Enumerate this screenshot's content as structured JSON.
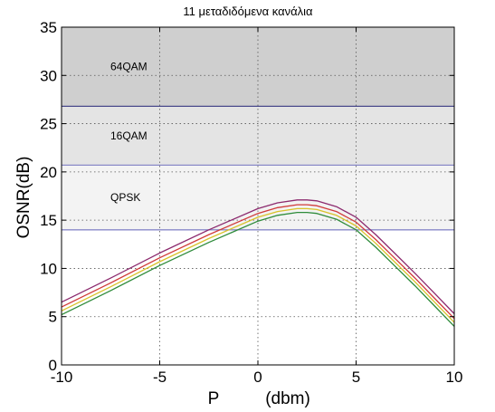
{
  "chart_data": {
    "type": "line",
    "title": "11 μεταδιδόμενα κανάλια",
    "xlabel_parts": [
      "P",
      "(dbm)"
    ],
    "ylabel": "OSNR(dB)",
    "xlim": [
      -10,
      10
    ],
    "ylim": [
      0,
      35
    ],
    "xticks": [
      -10,
      -5,
      0,
      5,
      10
    ],
    "yticks": [
      0,
      5,
      10,
      15,
      20,
      25,
      30,
      35
    ],
    "grid": true,
    "bands": [
      {
        "label": "64QAM",
        "y0": 26.8,
        "y1": 35,
        "color": "#cfcfcf"
      },
      {
        "label": "16QAM",
        "y0": 20.7,
        "y1": 26.8,
        "color": "#e4e4e4"
      },
      {
        "label": "QPSK",
        "y0": 14.0,
        "y1": 20.7,
        "color": "#f3f3f3"
      }
    ],
    "thresholds": [
      {
        "y": 26.8,
        "color": "#4a4a8c"
      },
      {
        "y": 20.7,
        "color": "#8a8ac8"
      },
      {
        "y": 14.0,
        "color": "#8a8ac8"
      }
    ],
    "series": [
      {
        "color": "#8c2a6e",
        "x": [
          -10,
          -7.5,
          -5,
          -2.5,
          0,
          1,
          2,
          2.5,
          3,
          4,
          5,
          6,
          7,
          8,
          9,
          10
        ],
        "y": [
          6.5,
          9.0,
          11.6,
          14.0,
          16.2,
          16.8,
          17.1,
          17.1,
          17.0,
          16.4,
          15.3,
          13.5,
          11.5,
          9.5,
          7.4,
          5.3
        ]
      },
      {
        "color": "#d03a3a",
        "x": [
          -10,
          -7.5,
          -5,
          -2.5,
          0,
          1,
          2,
          2.5,
          3,
          4,
          5,
          6,
          7,
          8,
          9,
          10
        ],
        "y": [
          6.0,
          8.5,
          11.1,
          13.5,
          15.7,
          16.3,
          16.6,
          16.6,
          16.5,
          15.9,
          14.8,
          13.0,
          11.0,
          9.0,
          6.9,
          4.8
        ]
      },
      {
        "color": "#d8c22a",
        "x": [
          -10,
          -7.5,
          -5,
          -2.5,
          0,
          1,
          2,
          2.5,
          3,
          4,
          5,
          6,
          7,
          8,
          9,
          10
        ],
        "y": [
          5.6,
          8.1,
          10.7,
          13.1,
          15.3,
          15.9,
          16.2,
          16.2,
          16.1,
          15.5,
          14.4,
          12.6,
          10.6,
          8.6,
          6.5,
          4.4
        ]
      },
      {
        "color": "#2e8b3a",
        "x": [
          -10,
          -7.5,
          -5,
          -2.5,
          0,
          1,
          2,
          2.5,
          3,
          4,
          5,
          6,
          7,
          8,
          9,
          10
        ],
        "y": [
          5.2,
          7.7,
          10.3,
          12.7,
          14.9,
          15.5,
          15.8,
          15.8,
          15.7,
          15.1,
          14.0,
          12.2,
          10.2,
          8.2,
          6.1,
          4.0
        ]
      }
    ]
  }
}
